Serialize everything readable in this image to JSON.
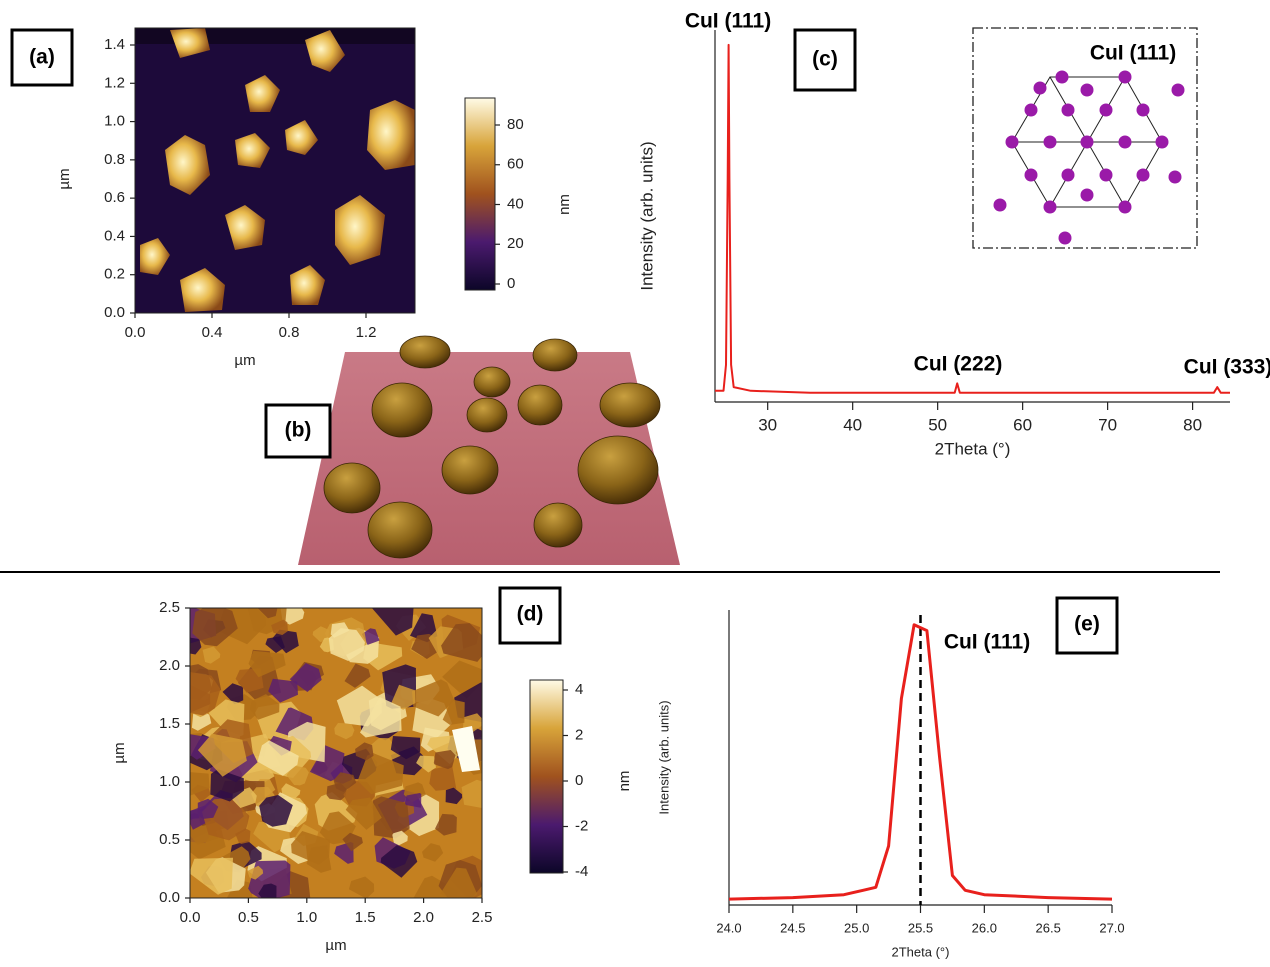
{
  "images": {
    "a": {
      "panel_label": "(a)",
      "xlabel": "µm",
      "ylabel": "µm",
      "xticks": [
        "0.0",
        "0.4",
        "0.8",
        "1.2"
      ],
      "yticks": [
        "0.0",
        "0.2",
        "0.4",
        "0.6",
        "0.8",
        "1.0",
        "1.2",
        "1.4"
      ],
      "colorbar_label": "nm",
      "colorbar_ticks": [
        "0",
        "20",
        "40",
        "60",
        "80"
      ]
    },
    "b": {
      "panel_label": "(b)"
    },
    "d": {
      "panel_label": "(d)",
      "xlabel": "µm",
      "ylabel": "µm",
      "xticks": [
        "0.0",
        "0.5",
        "1.0",
        "1.5",
        "2.0",
        "2.5"
      ],
      "yticks": [
        "0.0",
        "0.5",
        "1.0",
        "1.5",
        "2.0",
        "2.5"
      ],
      "colorbar_label": "nm",
      "colorbar_ticks": [
        "-4",
        "-2",
        "0",
        "2",
        "4"
      ]
    }
  },
  "chart_data": [
    {
      "type": "line",
      "panel_label": "(c)",
      "xlabel": "2Theta (°)",
      "ylabel": "Intensity (arb. units)",
      "annotations": [
        "CuI (111)",
        "CuI (222)",
        "CuI (333)"
      ],
      "inset_label": "CuI (111)",
      "color": "#e8201c",
      "xlim": [
        23.8,
        84.4
      ],
      "xticks": [
        30,
        40,
        50,
        60,
        70,
        80
      ],
      "ylim": [
        0,
        100
      ],
      "x": [
        23.8,
        24.8,
        25.1,
        25.3,
        25.4,
        25.5,
        25.7,
        26,
        28,
        35,
        45,
        52,
        52.3,
        52.6,
        60,
        70,
        82.5,
        82.9,
        83.3,
        84.4
      ],
      "values": [
        3,
        3,
        10,
        60,
        96,
        60,
        10,
        4,
        3,
        2.5,
        2.5,
        2.5,
        5,
        2.5,
        2.5,
        2.5,
        2.5,
        4,
        2.5,
        2.5
      ]
    },
    {
      "type": "line",
      "panel_label": "(e)",
      "xlabel": "2Theta (°)",
      "ylabel": "Intensity (arb. units)",
      "annotation": "CuI (111)",
      "color": "#e8201c",
      "reference_line": 25.5,
      "xlim": [
        24.0,
        27.0
      ],
      "xticks": [
        {
          "value": 24,
          "label": "24.0"
        },
        24.5,
        {
          "value": 25,
          "label": "25.0"
        },
        25.5,
        {
          "value": 26,
          "label": "26.0"
        },
        26.5,
        {
          "value": 27,
          "label": "27.0"
        }
      ],
      "ylim": [
        0,
        100
      ],
      "x": [
        24.0,
        24.5,
        24.9,
        25.05,
        25.15,
        25.25,
        25.35,
        25.45,
        25.55,
        25.65,
        25.75,
        25.85,
        26.0,
        26.5,
        27.0
      ],
      "values": [
        2,
        2.5,
        3.5,
        5,
        6,
        20,
        70,
        95,
        93,
        50,
        10,
        5,
        3.5,
        2.5,
        2
      ]
    }
  ]
}
